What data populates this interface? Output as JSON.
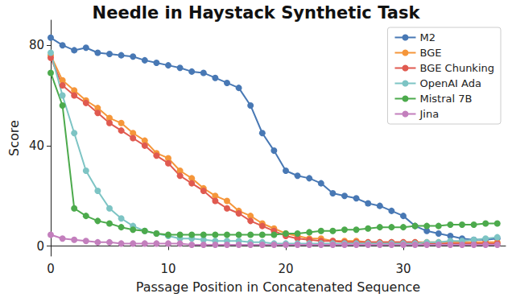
{
  "chart_data": {
    "type": "line",
    "title": "Needle in Haystack Synthetic Task",
    "x_label": "Passage Position in Concatenated Sequence",
    "y_label": "Score",
    "x": [
      0,
      1,
      2,
      3,
      4,
      5,
      6,
      7,
      8,
      9,
      10,
      11,
      12,
      13,
      14,
      15,
      16,
      17,
      18,
      19,
      20,
      21,
      22,
      23,
      24,
      25,
      26,
      27,
      28,
      29,
      30,
      31,
      32,
      33,
      34,
      35,
      36,
      37,
      38
    ],
    "xlim": [
      0,
      38.7
    ],
    "xticks": [
      0,
      10,
      20,
      30
    ],
    "ylim": [
      -4,
      90
    ],
    "yticks": [
      0,
      40,
      80
    ],
    "grid": false,
    "legend": "upper right",
    "marker": "circle",
    "series": [
      {
        "name": "M2",
        "color": "#4878b4",
        "values": [
          83,
          80,
          78,
          79,
          77,
          76.5,
          76,
          75.5,
          74,
          73,
          72,
          71,
          69.5,
          69,
          67,
          65,
          63,
          56,
          45,
          38,
          30,
          28,
          27,
          25,
          21,
          20,
          19,
          17,
          16,
          14,
          12,
          8,
          6,
          5,
          4,
          3,
          2.5,
          2.5,
          3
        ]
      },
      {
        "name": "BGE",
        "color": "#f5963a",
        "values": [
          76,
          66,
          62,
          58,
          55,
          51,
          49,
          45,
          42,
          37,
          35,
          30,
          27,
          23,
          20,
          18,
          14,
          12,
          9,
          7,
          5,
          4,
          3,
          3,
          2,
          2,
          2,
          1.5,
          1.5,
          1.5,
          1.5,
          1.5,
          1.5,
          1.5,
          1.5,
          1.5,
          1.5,
          1.5,
          1.5
        ]
      },
      {
        "name": "BGE Chunking",
        "color": "#e05a50",
        "values": [
          75,
          64,
          60,
          57,
          53,
          49,
          46,
          43,
          40,
          36,
          33,
          28,
          25,
          22,
          18,
          15,
          13,
          10,
          8,
          6,
          4,
          3,
          2.5,
          2,
          2,
          1.5,
          1.5,
          1.5,
          1.5,
          1.5,
          1.5,
          1.5,
          1,
          1,
          1,
          1,
          1,
          1,
          1
        ]
      },
      {
        "name": "OpenAI Ada",
        "color": "#7dc4c4",
        "values": [
          77,
          60,
          45,
          30,
          22,
          15,
          11,
          8,
          6,
          5,
          4,
          3,
          3,
          2.5,
          2,
          2,
          2,
          1.5,
          1.5,
          1,
          1,
          1,
          1,
          1,
          1,
          1,
          1,
          1,
          1,
          1,
          1,
          1,
          1.5,
          1.5,
          2,
          2,
          2.5,
          3,
          3.5
        ]
      },
      {
        "name": "Mistral 7B",
        "color": "#4caa4c",
        "values": [
          69,
          56,
          15,
          12,
          10,
          9,
          7.5,
          6.5,
          6,
          5,
          4.5,
          4.5,
          4.5,
          4.5,
          4.5,
          4.5,
          4.5,
          4.5,
          4.5,
          4.5,
          5,
          5,
          5.5,
          6,
          6,
          6.5,
          6.5,
          7,
          7.5,
          7.5,
          7.5,
          8,
          8,
          8,
          8.5,
          8.5,
          8.5,
          9,
          9
        ]
      },
      {
        "name": "Jina",
        "color": "#c37fbd",
        "values": [
          4.5,
          3,
          2.5,
          2,
          1.5,
          1.5,
          1,
          1,
          1,
          1,
          1,
          1,
          0.5,
          0.5,
          0.5,
          0.5,
          0.5,
          0.5,
          0.5,
          0.5,
          0.5,
          0.5,
          0.5,
          0.5,
          0.5,
          0.5,
          0.5,
          0.5,
          0.5,
          0.5,
          0.5,
          0.5,
          0.5,
          0.5,
          0.5,
          0.5,
          0.5,
          0.5,
          0.5
        ]
      }
    ]
  }
}
